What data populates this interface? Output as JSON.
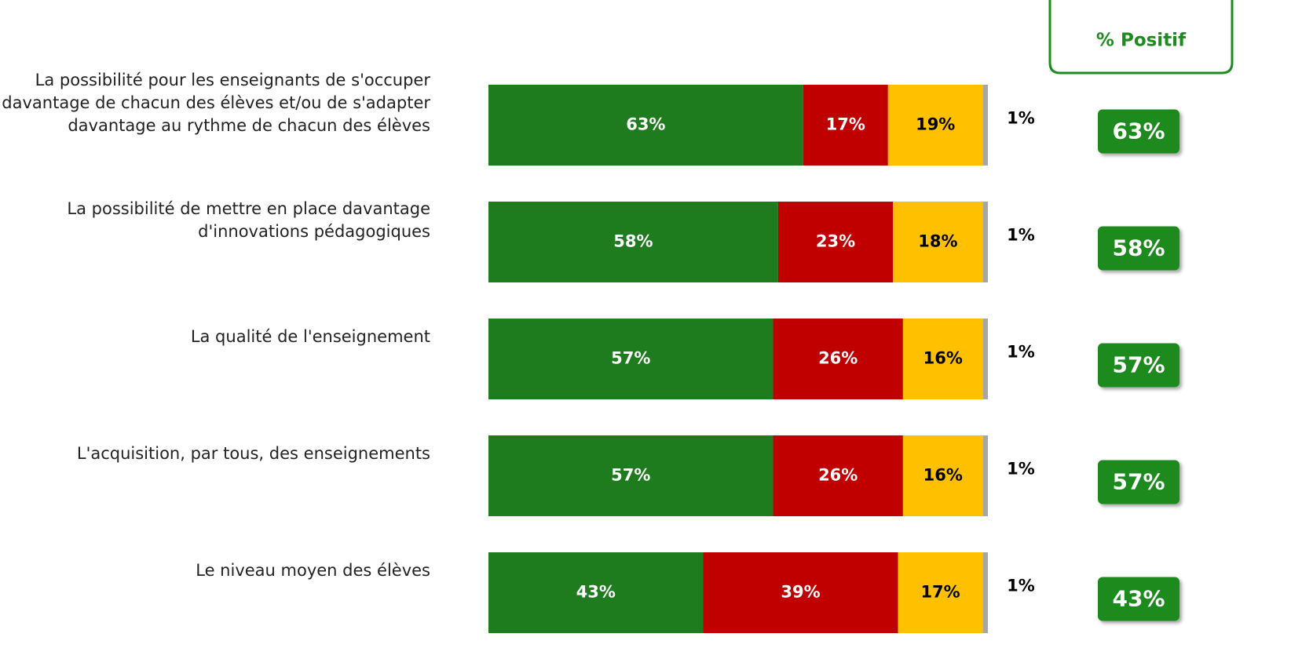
{
  "chart_data": {
    "type": "bar",
    "orientation": "horizontal",
    "stacked": true,
    "categories": [
      "La possibilité pour les enseignants de s'occuper davantage de chacun des élèves et/ou de s'adapter davantage au rythme de chacun des élèves",
      "La possibilité de mettre en place davantage d'innovations pédagogiques",
      "La qualité de l'enseignement",
      "L'acquisition, par tous, des enseignements",
      "Le niveau moyen des élèves"
    ],
    "xlim": [
      0,
      100
    ],
    "series": [
      {
        "color": "#1e7b1e",
        "label_color": "#ffffff",
        "values": [
          63,
          58,
          57,
          57,
          43
        ],
        "value_labels": [
          "63%",
          "58%",
          "57%",
          "57%",
          "43%"
        ]
      },
      {
        "color": "#c00000",
        "label_color": "#ffffff",
        "values": [
          17,
          23,
          26,
          26,
          39
        ],
        "value_labels": [
          "17%",
          "23%",
          "26%",
          "26%",
          "39%"
        ]
      },
      {
        "color": "#ffc000",
        "label_color": "#000000",
        "values": [
          19,
          18,
          16,
          16,
          17
        ],
        "value_labels": [
          "19%",
          "18%",
          "16%",
          "16%",
          "17%"
        ]
      },
      {
        "color": "#a6a6a6",
        "label_color": "#000000",
        "values": [
          1,
          1,
          1,
          1,
          1
        ],
        "value_labels": [
          "1%",
          "1%",
          "1%",
          "1%",
          "1%"
        ]
      }
    ],
    "positive": {
      "title": "% Positif",
      "color": "#1f8a1f",
      "values": [
        63,
        58,
        57,
        57,
        43
      ],
      "value_labels": [
        "63%",
        "58%",
        "57%",
        "57%",
        "43%"
      ]
    }
  }
}
